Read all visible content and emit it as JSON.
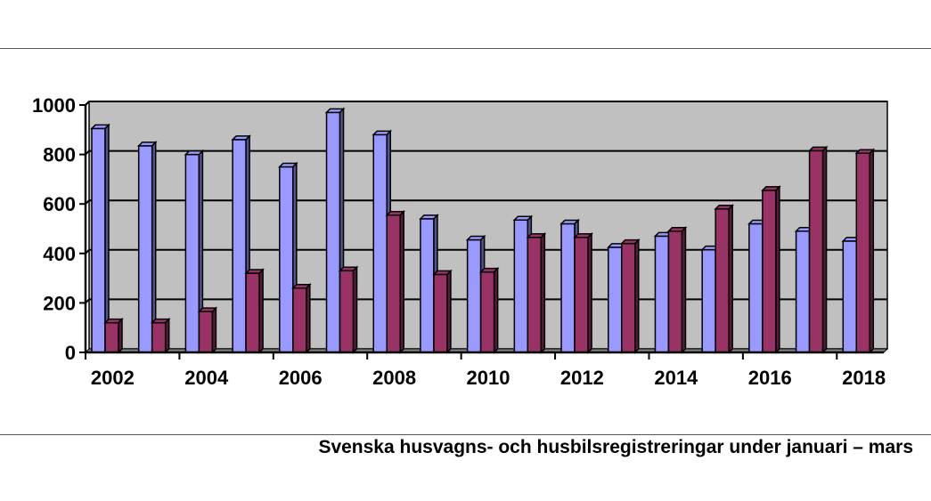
{
  "caption": "Svenska husvagns- och husbilsregistreringar under januari – mars",
  "colors": {
    "plot_bg": "#c0c0c0",
    "series_a": "#9999ff",
    "series_b": "#993366",
    "gridline": "#000000"
  },
  "chart_data": {
    "type": "bar",
    "categories": [
      "2002",
      "2003",
      "2004",
      "2005",
      "2006",
      "2007",
      "2008",
      "2009",
      "2010",
      "2011",
      "2012",
      "2013",
      "2014",
      "2015",
      "2016",
      "2017",
      "2018"
    ],
    "x_tick_labels": [
      "2002",
      "2004",
      "2006",
      "2008",
      "2010",
      "2012",
      "2014",
      "2016",
      "2018"
    ],
    "y_tick_labels": [
      "0",
      "200",
      "400",
      "600",
      "800",
      "1000"
    ],
    "ylim": [
      0,
      1000
    ],
    "grid": true,
    "legend": "none",
    "series": [
      {
        "values": [
          905,
          835,
          800,
          860,
          750,
          970,
          880,
          540,
          455,
          535,
          520,
          425,
          470,
          415,
          520,
          490,
          450
        ]
      },
      {
        "values": [
          120,
          120,
          165,
          320,
          260,
          330,
          555,
          315,
          325,
          465,
          465,
          440,
          490,
          580,
          655,
          815,
          805
        ]
      }
    ]
  }
}
